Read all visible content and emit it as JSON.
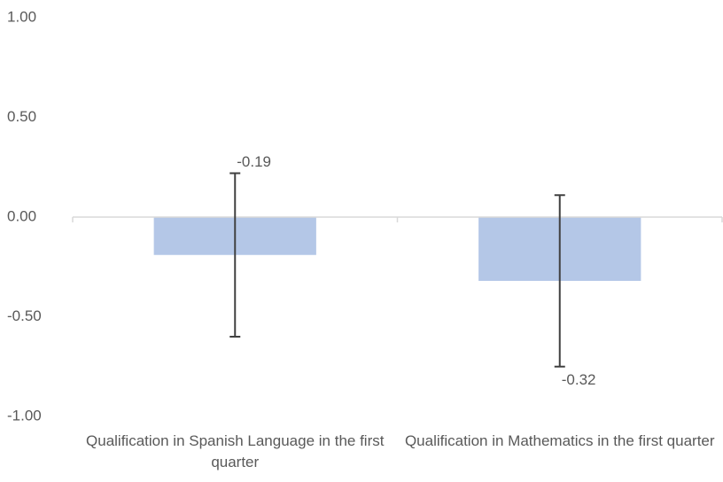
{
  "chart_data": {
    "type": "bar",
    "categories": [
      "Qualification in Spanish Language in the first quarter",
      "Qualification in Mathematics in the first quarter"
    ],
    "values": [
      -0.19,
      -0.32
    ],
    "errors": [
      0.41,
      0.43
    ],
    "color": "#b4c7e7",
    "error_color": "#404040",
    "ylim": [
      -1,
      1
    ],
    "yticks": [
      {
        "value": -1,
        "label": "-1.00"
      },
      {
        "value": -0.5,
        "label": "-0.50"
      },
      {
        "value": 0,
        "label": "0.00"
      },
      {
        "value": 0.5,
        "label": "0.50"
      },
      {
        "value": 1,
        "label": "1.00"
      }
    ],
    "grid": false
  }
}
